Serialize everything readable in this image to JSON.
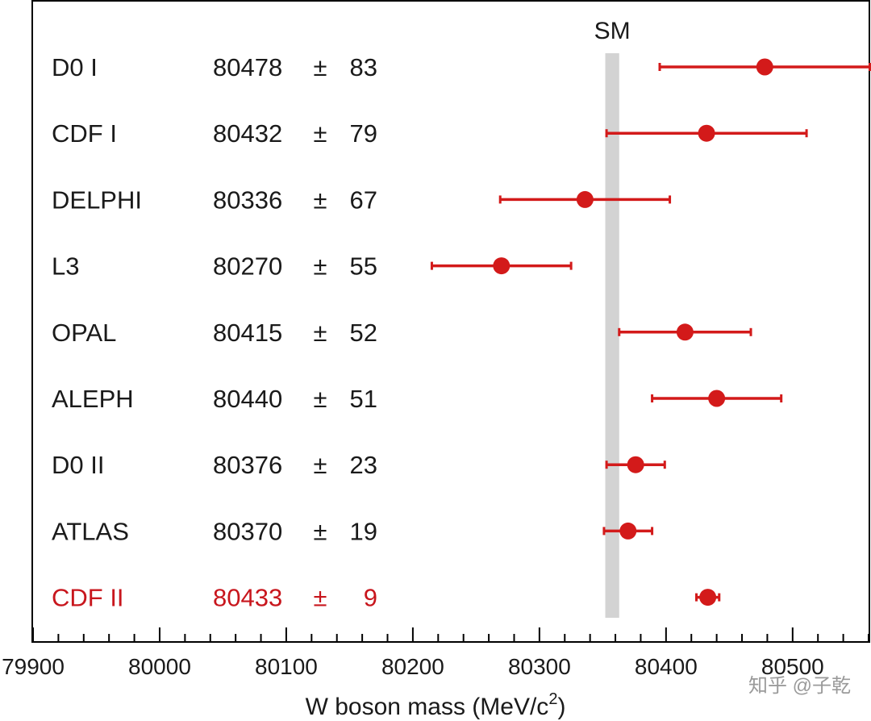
{
  "chart_data": {
    "type": "scatter",
    "subtype": "forest-plot",
    "title": "",
    "xlabel": "W boson mass (MeV/c",
    "xlabel_superscript": "2",
    "xlabel_suffix": ")",
    "xlim": [
      79900,
      80560
    ],
    "xticks": [
      79900,
      80000,
      80100,
      80200,
      80300,
      80400,
      80500
    ],
    "xtick_labels": [
      "79900",
      "80000",
      "80100",
      "80200",
      "80300",
      "80400",
      "80500"
    ],
    "minor_tick_step": 20,
    "sm_band": {
      "label": "SM",
      "min": 80352,
      "max": 80363
    },
    "plus_minus": "±",
    "series": [
      {
        "name": "D0 I",
        "value": 80478,
        "error": 83,
        "value_label": "80478",
        "error_label": "83",
        "highlight": false
      },
      {
        "name": "CDF I",
        "value": 80432,
        "error": 79,
        "value_label": "80432",
        "error_label": "79",
        "highlight": false
      },
      {
        "name": "DELPHI",
        "value": 80336,
        "error": 67,
        "value_label": "80336",
        "error_label": "67",
        "highlight": false
      },
      {
        "name": "L3",
        "value": 80270,
        "error": 55,
        "value_label": "80270",
        "error_label": "55",
        "highlight": false
      },
      {
        "name": "OPAL",
        "value": 80415,
        "error": 52,
        "value_label": "80415",
        "error_label": "52",
        "highlight": false
      },
      {
        "name": "ALEPH",
        "value": 80440,
        "error": 51,
        "value_label": "80440",
        "error_label": "51",
        "highlight": false
      },
      {
        "name": "D0 II",
        "value": 80376,
        "error": 23,
        "value_label": "80376",
        "error_label": "23",
        "highlight": false
      },
      {
        "name": "ATLAS",
        "value": 80370,
        "error": 19,
        "value_label": "80370",
        "error_label": "19",
        "highlight": false
      },
      {
        "name": "CDF II",
        "value": 80433,
        "error": 9,
        "value_label": "80433",
        "error_label": "9",
        "highlight": true
      }
    ],
    "colors": {
      "marker": "#d31a1a",
      "highlight_text": "#c8161d",
      "text": "#1a1a1a",
      "band": "#d3d3d3",
      "axis": "#000000"
    },
    "watermark": "知乎 @子乾"
  }
}
